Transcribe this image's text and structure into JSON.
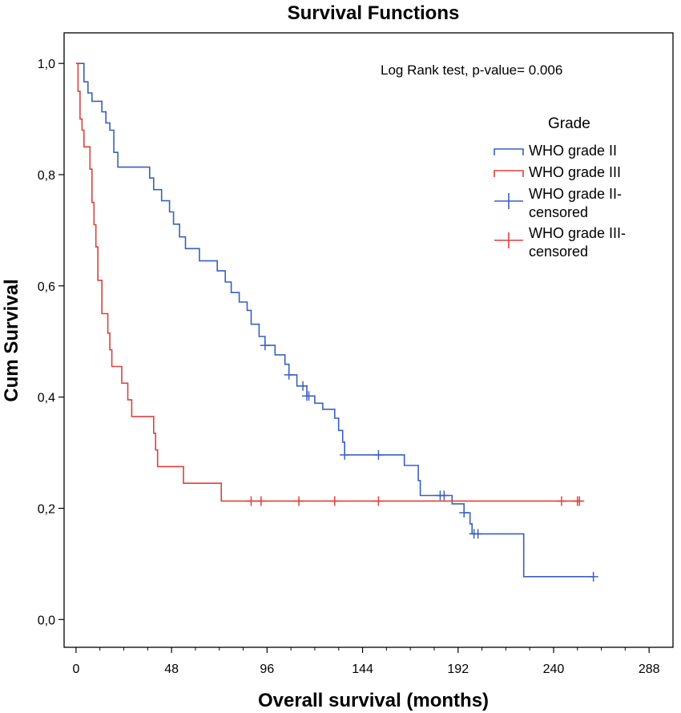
{
  "chart_data": {
    "type": "line",
    "title": "Survival Functions",
    "xlabel": "Overall survival (months)",
    "ylabel": "Cum Survival",
    "xlim": [
      -6,
      300
    ],
    "ylim": [
      -0.05,
      1.055
    ],
    "x_ticks": [
      0,
      48,
      96,
      144,
      192,
      240,
      288
    ],
    "x_tick_labels": [
      "0",
      "48",
      "96",
      "144",
      "192",
      "240",
      "288"
    ],
    "y_ticks": [
      0,
      0.2,
      0.4,
      0.6,
      0.8,
      1.0
    ],
    "y_tick_labels": [
      "0,0",
      "0,2",
      "0,4",
      "0,6",
      "0,8",
      "1,0"
    ],
    "annotation": "Log Rank test, p-value= 0.006",
    "legend": {
      "title": "Grade",
      "position": "top-right",
      "entries": [
        {
          "label": "WHO grade II",
          "kind": "step",
          "color": "#3a5fbf"
        },
        {
          "label": "WHO grade III",
          "kind": "step",
          "color": "#e0403a"
        },
        {
          "label_line1": "WHO grade II-",
          "label_line2": "censored",
          "kind": "censor",
          "color": "#3a5fbf"
        },
        {
          "label_line1": "WHO grade III-",
          "label_line2": "censored",
          "kind": "censor",
          "color": "#e0403a"
        }
      ]
    },
    "series": [
      {
        "name": "WHO grade II",
        "color": "#3a5fbf",
        "steps": [
          [
            0,
            1.0
          ],
          [
            4,
            0.967
          ],
          [
            6,
            0.947
          ],
          [
            8,
            0.932
          ],
          [
            13,
            0.913
          ],
          [
            15,
            0.893
          ],
          [
            17,
            0.88
          ],
          [
            19,
            0.84
          ],
          [
            21,
            0.8135
          ],
          [
            37,
            0.794
          ],
          [
            39,
            0.773
          ],
          [
            43,
            0.753
          ],
          [
            47,
            0.733
          ],
          [
            49,
            0.711
          ],
          [
            52,
            0.688
          ],
          [
            55,
            0.667
          ],
          [
            62,
            0.645
          ],
          [
            71,
            0.627
          ],
          [
            75,
            0.607
          ],
          [
            78,
            0.588
          ],
          [
            82,
            0.571
          ],
          [
            86,
            0.556
          ],
          [
            88,
            0.531
          ],
          [
            92,
            0.509
          ],
          [
            95,
            0.493
          ],
          [
            100,
            0.476
          ],
          [
            105,
            0.459
          ],
          [
            107,
            0.44
          ],
          [
            111,
            0.42
          ],
          [
            116,
            0.402
          ],
          [
            120,
            0.389
          ],
          [
            124,
            0.378
          ],
          [
            130,
            0.362
          ],
          [
            132,
            0.34
          ],
          [
            134,
            0.319
          ],
          [
            135,
            0.296
          ],
          [
            165,
            0.277
          ],
          [
            172,
            0.25
          ],
          [
            173,
            0.223
          ],
          [
            189,
            0.208
          ],
          [
            195,
            0.192
          ],
          [
            198,
            0.172
          ],
          [
            199,
            0.154
          ],
          [
            225,
            0.077
          ],
          [
            260,
            0.077
          ]
        ],
        "censored": [
          [
            95,
            0.493
          ],
          [
            107,
            0.44
          ],
          [
            114,
            0.42
          ],
          [
            116,
            0.402
          ],
          [
            117,
            0.402
          ],
          [
            135,
            0.296
          ],
          [
            152,
            0.296
          ],
          [
            183,
            0.223
          ],
          [
            185,
            0.223
          ],
          [
            195,
            0.192
          ],
          [
            200,
            0.154
          ],
          [
            202,
            0.154
          ],
          [
            260,
            0.077
          ]
        ]
      },
      {
        "name": "WHO grade III",
        "color": "#e0403a",
        "steps": [
          [
            0,
            1.0
          ],
          [
            1,
            0.95
          ],
          [
            2,
            0.9
          ],
          [
            3,
            0.88
          ],
          [
            4,
            0.85
          ],
          [
            7,
            0.81
          ],
          [
            8,
            0.75
          ],
          [
            9,
            0.71
          ],
          [
            10,
            0.67
          ],
          [
            11,
            0.61
          ],
          [
            13,
            0.55
          ],
          [
            16,
            0.515
          ],
          [
            17,
            0.485
          ],
          [
            18,
            0.455
          ],
          [
            23,
            0.425
          ],
          [
            26,
            0.395
          ],
          [
            28,
            0.365
          ],
          [
            39,
            0.335
          ],
          [
            40,
            0.305
          ],
          [
            41,
            0.275
          ],
          [
            54,
            0.245
          ],
          [
            73,
            0.213
          ],
          [
            253,
            0.213
          ]
        ],
        "censored": [
          [
            88,
            0.213
          ],
          [
            93,
            0.213
          ],
          [
            112,
            0.213
          ],
          [
            130,
            0.213
          ],
          [
            152,
            0.213
          ],
          [
            244,
            0.213
          ],
          [
            252,
            0.213
          ],
          [
            253,
            0.213
          ]
        ]
      }
    ]
  }
}
